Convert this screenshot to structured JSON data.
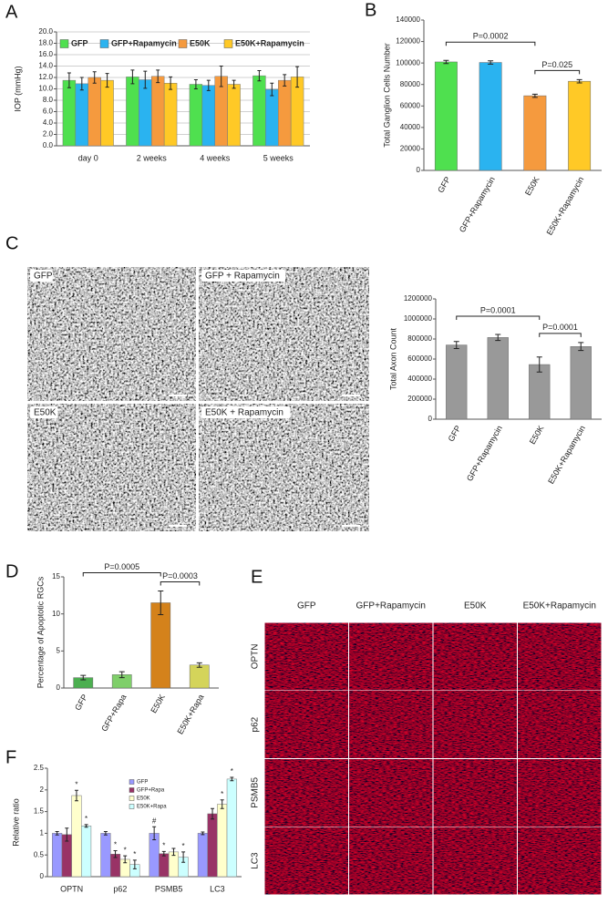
{
  "chart_data": [
    {
      "type": "bar",
      "panel": "A",
      "y_label": "IOP (mmHg)",
      "grid": true,
      "categories": [
        "day 0",
        "2 weeks",
        "4 weeks",
        "5 weeks"
      ],
      "ylim": [
        0,
        20
      ],
      "yticks": [
        {
          "value": 0,
          "label": "0.0"
        },
        {
          "value": 2,
          "label": "2.0"
        },
        {
          "value": 4,
          "label": "4.0"
        },
        {
          "value": 6,
          "label": "6.0"
        },
        {
          "value": 8,
          "label": "8.0"
        },
        {
          "value": 10,
          "label": "10.0"
        },
        {
          "value": 12,
          "label": "12.0"
        },
        {
          "value": 14,
          "label": "14.0"
        },
        {
          "value": 16,
          "label": "16.0"
        },
        {
          "value": 18,
          "label": "18.0"
        },
        {
          "value": 20,
          "label": "20.0"
        }
      ],
      "series": [
        {
          "name": "GFP",
          "color": "#4fe04f",
          "values": [
            11.5,
            12.1,
            10.8,
            12.3
          ],
          "errors": [
            1.3,
            1.2,
            0.8,
            0.9
          ]
        },
        {
          "name": "GFP+Rapamycin",
          "color": "#2ab3f0",
          "values": [
            10.9,
            11.6,
            10.6,
            9.9
          ],
          "errors": [
            1.1,
            1.5,
            0.9,
            1.1
          ]
        },
        {
          "name": "E50K",
          "color": "#f59a3e",
          "values": [
            12.0,
            12.2,
            12.2,
            11.5
          ],
          "errors": [
            1.0,
            1.1,
            1.8,
            1.0
          ]
        },
        {
          "name": "E50K+Rapamycin",
          "color": "#ffc926",
          "values": [
            11.5,
            11.0,
            10.8,
            12.1
          ],
          "errors": [
            1.2,
            1.1,
            0.7,
            1.8
          ]
        }
      ]
    },
    {
      "type": "bar",
      "panel": "B",
      "y_label": "Total Ganglion Cells Number",
      "grid": false,
      "categories": [
        "GFP",
        "GFP+Rapamycin",
        "E50K",
        "E50K+Rapamycin"
      ],
      "values": [
        101000,
        100500,
        69500,
        83000
      ],
      "errors": [
        1500,
        1500,
        1500,
        1500
      ],
      "colors": [
        "#4fe04f",
        "#2ab3f0",
        "#f59a3e",
        "#ffc926"
      ],
      "ylim": [
        0,
        140000
      ],
      "yticks": [
        0,
        20000,
        40000,
        60000,
        80000,
        100000,
        120000,
        140000
      ],
      "annotations": [
        {
          "text": "P=0.0002",
          "between": [
            "GFP",
            "E50K"
          ]
        },
        {
          "text": "P=0.025",
          "between": [
            "E50K",
            "E50K+Rapamycin"
          ]
        }
      ]
    },
    {
      "type": "bar",
      "panel": "C",
      "y_label": "Total Axon Count",
      "grid": false,
      "images": [
        "GFP",
        "GFP + Rapamycin",
        "E50K",
        "E50K + Rapamycin"
      ],
      "categories": [
        "GFP",
        "GFP+Rapamycin",
        "E50K",
        "E50K+Rapamycin"
      ],
      "values": [
        740000,
        815000,
        545000,
        725000
      ],
      "errors": [
        35000,
        30000,
        75000,
        40000
      ],
      "color": "#999999",
      "ylim": [
        0,
        1200000
      ],
      "yticks": [
        0,
        200000,
        400000,
        600000,
        800000,
        1000000,
        1200000
      ],
      "annotations": [
        {
          "text": "P=0.0001",
          "between": [
            "GFP",
            "E50K"
          ]
        },
        {
          "text": "P=0.0001",
          "between": [
            "E50K",
            "E50K+Rapamycin"
          ]
        }
      ]
    },
    {
      "type": "bar",
      "panel": "D",
      "y_label": "Percentage of Apoptotic RGCs",
      "grid": false,
      "categories": [
        "GFP",
        "GFP+Rapa",
        "E50K",
        "E50K+Rapa"
      ],
      "values": [
        1.4,
        1.8,
        11.5,
        3.1
      ],
      "errors": [
        0.3,
        0.4,
        1.6,
        0.3
      ],
      "colors": [
        "#4caf50",
        "#7fcf6a",
        "#d4821b",
        "#d4d45a"
      ],
      "ylim": [
        0,
        15
      ],
      "yticks": [
        0,
        5,
        10,
        15
      ],
      "annotations": [
        {
          "text": "P=0.0005",
          "between": [
            "GFP",
            "E50K"
          ]
        },
        {
          "text": "P=0.0003",
          "between": [
            "E50K",
            "E50K+Rapa"
          ]
        }
      ]
    },
    {
      "type": "bar",
      "panel": "F",
      "y_label": "Relative ratio",
      "grid": false,
      "categories": [
        "OPTN",
        "p62",
        "PSMB5",
        "LC3"
      ],
      "ylim": [
        0,
        2.5
      ],
      "yticks": [
        0,
        0.5,
        1,
        1.5,
        2,
        2.5
      ],
      "series": [
        {
          "name": "GFP",
          "color": "#9999ff",
          "values": [
            1,
            1,
            1,
            1
          ],
          "errors": [
            0.04,
            0.04,
            0.15,
            0.03
          ],
          "markers": [
            null,
            null,
            "#",
            null
          ]
        },
        {
          "name": "GFP+Rapa",
          "color": "#993366",
          "values": [
            0.97,
            0.52,
            0.53,
            1.45
          ],
          "errors": [
            0.15,
            0.08,
            0.05,
            0.12
          ],
          "markers": [
            null,
            "*",
            "*",
            null
          ]
        },
        {
          "name": "E50K",
          "color": "#ffffcc",
          "values": [
            1.87,
            0.4,
            0.57,
            1.67
          ],
          "errors": [
            0.12,
            0.08,
            0.08,
            0.1
          ],
          "markers": [
            "*",
            "*",
            null,
            "*"
          ]
        },
        {
          "name": "E50K+Rapa",
          "color": "#ccffff",
          "values": [
            1.17,
            0.28,
            0.45,
            2.25
          ],
          "errors": [
            0.03,
            0.1,
            0.12,
            0.04
          ],
          "markers": [
            "*",
            "*",
            "*",
            "*"
          ]
        }
      ]
    }
  ],
  "figure_e": {
    "panel": "E",
    "columns": [
      "GFP",
      "GFP+Rapamycin",
      "E50K",
      "E50K+Rapamycin"
    ],
    "rows": [
      "OPTN",
      "p62",
      "PSMB5",
      "LC3"
    ]
  }
}
